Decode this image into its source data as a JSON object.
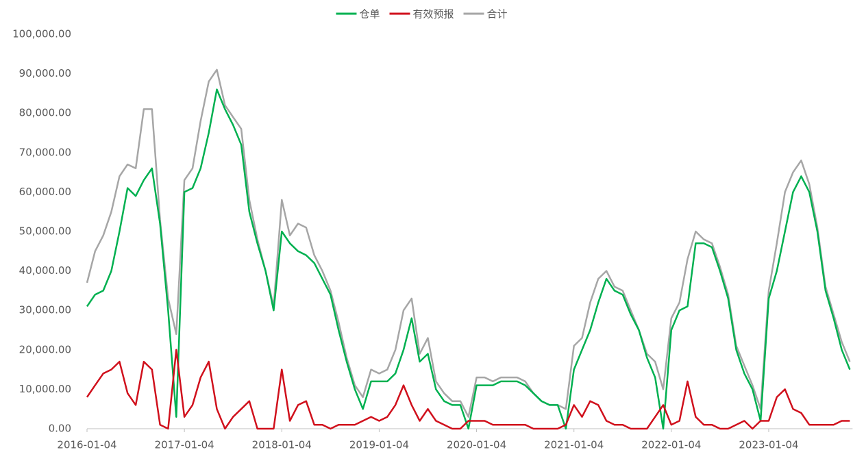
{
  "chart_data": {
    "type": "line",
    "categories": [
      "2016-01-04",
      null,
      null,
      null,
      null,
      null,
      null,
      null,
      null,
      null,
      null,
      null,
      "2017-01-04",
      null,
      null,
      null,
      null,
      null,
      null,
      null,
      null,
      null,
      null,
      null,
      "2018-01-04",
      null,
      null,
      null,
      null,
      null,
      null,
      null,
      null,
      null,
      null,
      null,
      "2019-01-04",
      null,
      null,
      null,
      null,
      null,
      null,
      null,
      null,
      null,
      null,
      null,
      "2020-01-04",
      null,
      null,
      null,
      null,
      null,
      null,
      null,
      null,
      null,
      null,
      null,
      "2021-01-04",
      null,
      null,
      null,
      null,
      null,
      null,
      null,
      null,
      null,
      null,
      null,
      "2022-01-04",
      null,
      null,
      null,
      null,
      null,
      null,
      null,
      null,
      null,
      null,
      null,
      "2023-01-04",
      null,
      null,
      null,
      null,
      null,
      null,
      null,
      null,
      null,
      null
    ],
    "series": [
      {
        "name": "仓单",
        "color": "#00b050",
        "values": [
          31000,
          34000,
          35000,
          40000,
          50000,
          61000,
          59000,
          63000,
          66000,
          52000,
          30000,
          3000,
          60000,
          61000,
          66000,
          75000,
          86000,
          81000,
          77000,
          72000,
          55000,
          47000,
          40000,
          30000,
          50000,
          47000,
          45000,
          44000,
          42000,
          38000,
          34000,
          25000,
          17000,
          10000,
          5000,
          12000,
          12000,
          12000,
          14000,
          20000,
          28000,
          17000,
          19000,
          10000,
          7000,
          6000,
          6000,
          0,
          11000,
          11000,
          11000,
          12000,
          12000,
          12000,
          11000,
          9000,
          7000,
          6000,
          6000,
          0,
          15000,
          20000,
          25000,
          32000,
          38000,
          35000,
          34000,
          29000,
          25000,
          18000,
          13000,
          0,
          25000,
          30000,
          31000,
          47000,
          47000,
          46000,
          40000,
          33000,
          20000,
          14000,
          10000,
          2000,
          33000,
          40000,
          50000,
          60000,
          64000,
          60000,
          50000,
          35000,
          28000,
          20000,
          15000
        ]
      },
      {
        "name": "有效预报",
        "color": "#d0101c",
        "values": [
          8000,
          11000,
          14000,
          15000,
          17000,
          9000,
          6000,
          17000,
          15000,
          1000,
          0,
          20000,
          3000,
          6000,
          13000,
          17000,
          5000,
          0,
          3000,
          5000,
          7000,
          0,
          0,
          0,
          15000,
          2000,
          6000,
          7000,
          1000,
          1000,
          0,
          1000,
          1000,
          1000,
          2000,
          3000,
          2000,
          3000,
          6000,
          11000,
          6000,
          2000,
          5000,
          2000,
          1000,
          0,
          0,
          2000,
          2000,
          2000,
          1000,
          1000,
          1000,
          1000,
          1000,
          0,
          0,
          0,
          0,
          1000,
          6000,
          3000,
          7000,
          6000,
          2000,
          1000,
          1000,
          0,
          0,
          0,
          3000,
          6000,
          1000,
          2000,
          12000,
          3000,
          1000,
          1000,
          0,
          0,
          1000,
          2000,
          0,
          2000,
          2000,
          8000,
          10000,
          5000,
          4000,
          1000,
          1000,
          1000,
          1000,
          2000,
          2000
        ]
      },
      {
        "name": "合计",
        "color": "#a6a6a6",
        "values": [
          37000,
          45000,
          49000,
          55000,
          64000,
          67000,
          66000,
          81000,
          81000,
          53000,
          33000,
          24000,
          63000,
          66000,
          78000,
          88000,
          91000,
          82000,
          79000,
          76000,
          58000,
          48000,
          40000,
          31000,
          58000,
          49000,
          52000,
          51000,
          44000,
          40000,
          35000,
          27000,
          18000,
          11000,
          8000,
          15000,
          14000,
          15000,
          20000,
          30000,
          33000,
          19000,
          23000,
          12000,
          9000,
          7000,
          7000,
          3000,
          13000,
          13000,
          12000,
          13000,
          13000,
          13000,
          12000,
          9000,
          7000,
          6000,
          6000,
          5000,
          21000,
          23000,
          32000,
          38000,
          40000,
          36000,
          35000,
          30000,
          25000,
          19000,
          17000,
          10000,
          28000,
          32000,
          43000,
          50000,
          48000,
          47000,
          41000,
          34000,
          21000,
          16000,
          11000,
          5000,
          35000,
          47000,
          60000,
          65000,
          68000,
          62000,
          51000,
          36000,
          29000,
          22000,
          17000
        ]
      }
    ],
    "ylim": [
      0,
      100000
    ],
    "yticks": [
      {
        "value": 0,
        "label": "0.00"
      },
      {
        "value": 10000,
        "label": "10,000.00"
      },
      {
        "value": 20000,
        "label": "20,000.00"
      },
      {
        "value": 30000,
        "label": "30,000.00"
      },
      {
        "value": 40000,
        "label": "40,000.00"
      },
      {
        "value": 50000,
        "label": "50,000.00"
      },
      {
        "value": 60000,
        "label": "60,000.00"
      },
      {
        "value": 70000,
        "label": "70,000.00"
      },
      {
        "value": 80000,
        "label": "80,000.00"
      },
      {
        "value": 90000,
        "label": "90,000.00"
      },
      {
        "value": 100000,
        "label": "100,000.00"
      }
    ],
    "legend": "top"
  }
}
